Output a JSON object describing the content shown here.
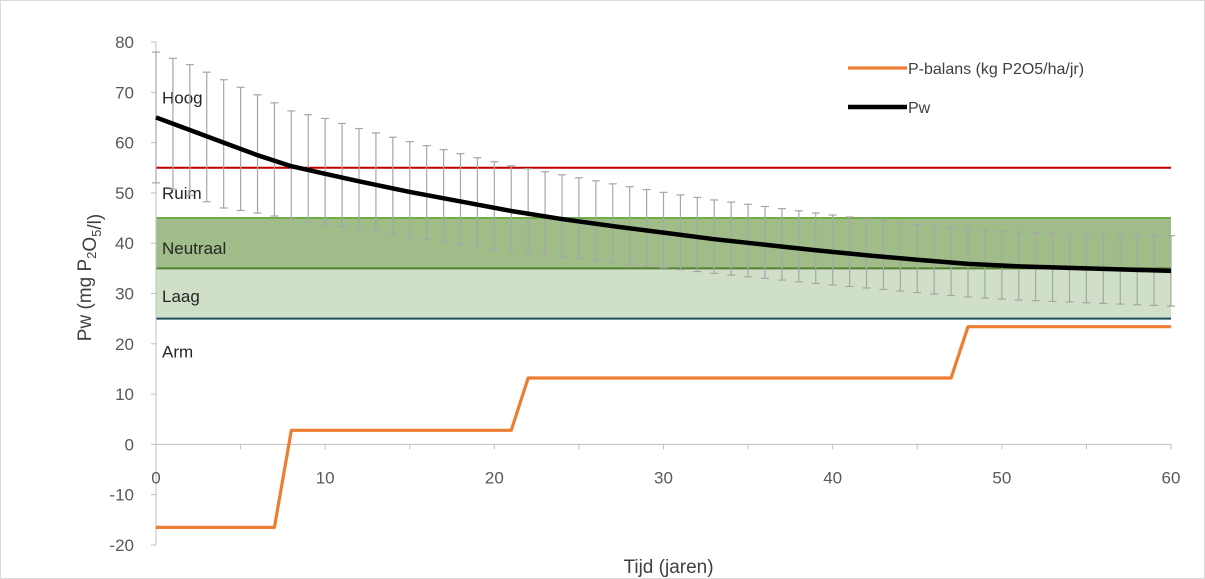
{
  "chart_data": {
    "type": "line",
    "xlabel": "Tijd (jaren)",
    "ylabel_main": "Pw (mg P",
    "ylabel_sub1": "2",
    "ylabel_mid": "O",
    "ylabel_sub2": "5",
    "ylabel_end": "/l)",
    "xlim": [
      0,
      60
    ],
    "ylim": [
      -20,
      80
    ],
    "x_ticks": [
      0,
      10,
      20,
      30,
      40,
      50,
      60
    ],
    "y_ticks": [
      -20,
      -10,
      0,
      10,
      20,
      30,
      40,
      50,
      60,
      70,
      80
    ],
    "zones": [
      {
        "label": "Hoog",
        "label_y": 69
      },
      {
        "label": "Ruim",
        "label_y": 50
      },
      {
        "label": "Neutraal",
        "label_y": 39
      },
      {
        "label": "Laag",
        "label_y": 29.5
      },
      {
        "label": "Arm",
        "label_y": 18.5
      }
    ],
    "bands": [
      {
        "y0": 35,
        "y1": 45,
        "color": "#7ba35c",
        "opacity": 0.72
      },
      {
        "y0": 25,
        "y1": 35,
        "color": "#a9c49a",
        "opacity": 0.55
      }
    ],
    "hlines": [
      {
        "y": 55,
        "color": "#c00000"
      },
      {
        "y": 45,
        "color": "#70ad47"
      },
      {
        "y": 35,
        "color": "#548235"
      },
      {
        "y": 25,
        "color": "#1f4e5f"
      }
    ],
    "series": [
      {
        "name": "P-balans (kg P2O5/ha/jr)",
        "color": "#ed7d31",
        "x": [
          0,
          7,
          8,
          21,
          22,
          47,
          48,
          60
        ],
        "y": [
          -16.5,
          -16.5,
          2.8,
          2.8,
          13.2,
          13.2,
          23.4,
          23.4
        ]
      },
      {
        "name": "Pw",
        "color": "#000000",
        "x": [
          0,
          2,
          4,
          6,
          8,
          10,
          12,
          15,
          18,
          21,
          24,
          27,
          30,
          33,
          36,
          39,
          42,
          45,
          48,
          51,
          54,
          57,
          60
        ],
        "y": [
          65,
          62.5,
          60,
          57.5,
          55.3,
          53.8,
          52.3,
          50.2,
          48.3,
          46.4,
          44.8,
          43.4,
          42.1,
          40.8,
          39.7,
          38.6,
          37.6,
          36.7,
          35.9,
          35.4,
          35.1,
          34.8,
          34.5
        ],
        "error_minus": [
          13,
          13,
          13,
          11.5,
          10.5,
          10,
          9.5,
          9,
          8.5,
          8,
          7.5,
          7.2,
          7,
          6.8,
          6.7,
          6.6,
          6.5,
          6.5,
          6.6,
          6.7,
          6.8,
          6.9,
          7
        ],
        "error_plus": [
          13,
          13,
          12.5,
          12,
          11,
          11,
          10.5,
          10,
          9.5,
          9,
          8.8,
          8.4,
          8,
          7.8,
          7.6,
          7.4,
          7.2,
          7,
          6.9,
          6.8,
          6.8,
          6.8,
          7
        ]
      }
    ],
    "legend_position": "top-right"
  }
}
